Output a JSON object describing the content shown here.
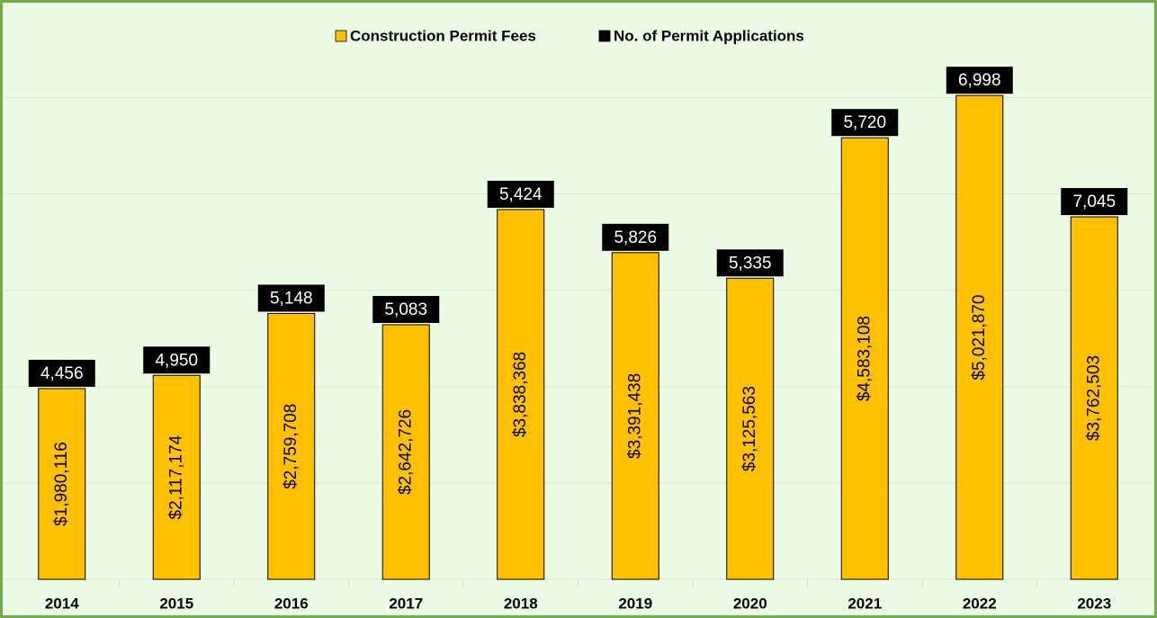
{
  "chart_data": {
    "type": "bar",
    "categories": [
      "2014",
      "2015",
      "2016",
      "2017",
      "2018",
      "2019",
      "2020",
      "2021",
      "2022",
      "2023"
    ],
    "series": [
      {
        "name": "Construction Permit Fees",
        "color": "#ffc000",
        "values": [
          1980116,
          2117174,
          2759708,
          2642726,
          3838368,
          3391438,
          3125563,
          4583108,
          5021870,
          3762503
        ],
        "value_labels": [
          "$1,980,116",
          "$2,117,174",
          "$2,759,708",
          "$2,642,726",
          "$3,838,368",
          "$3,391,438",
          "$3,125,563",
          "$4,583,108",
          "$5,021,870",
          "$3,762,503"
        ]
      },
      {
        "name": "No. of Permit Applications",
        "color": "#000000",
        "values": [
          4456,
          4950,
          5148,
          5083,
          5424,
          5826,
          5335,
          5720,
          6998,
          7045
        ],
        "value_labels": [
          "4,456",
          "4,950",
          "5,148",
          "5,083",
          "5,424",
          "5,826",
          "5,335",
          "5,720",
          "6,998",
          "7,045"
        ]
      }
    ],
    "ylim": [
      0,
      5500000
    ],
    "yticks": [
      0,
      1000000,
      2000000,
      3000000,
      4000000,
      5000000
    ],
    "grid": true,
    "legend": "top"
  }
}
